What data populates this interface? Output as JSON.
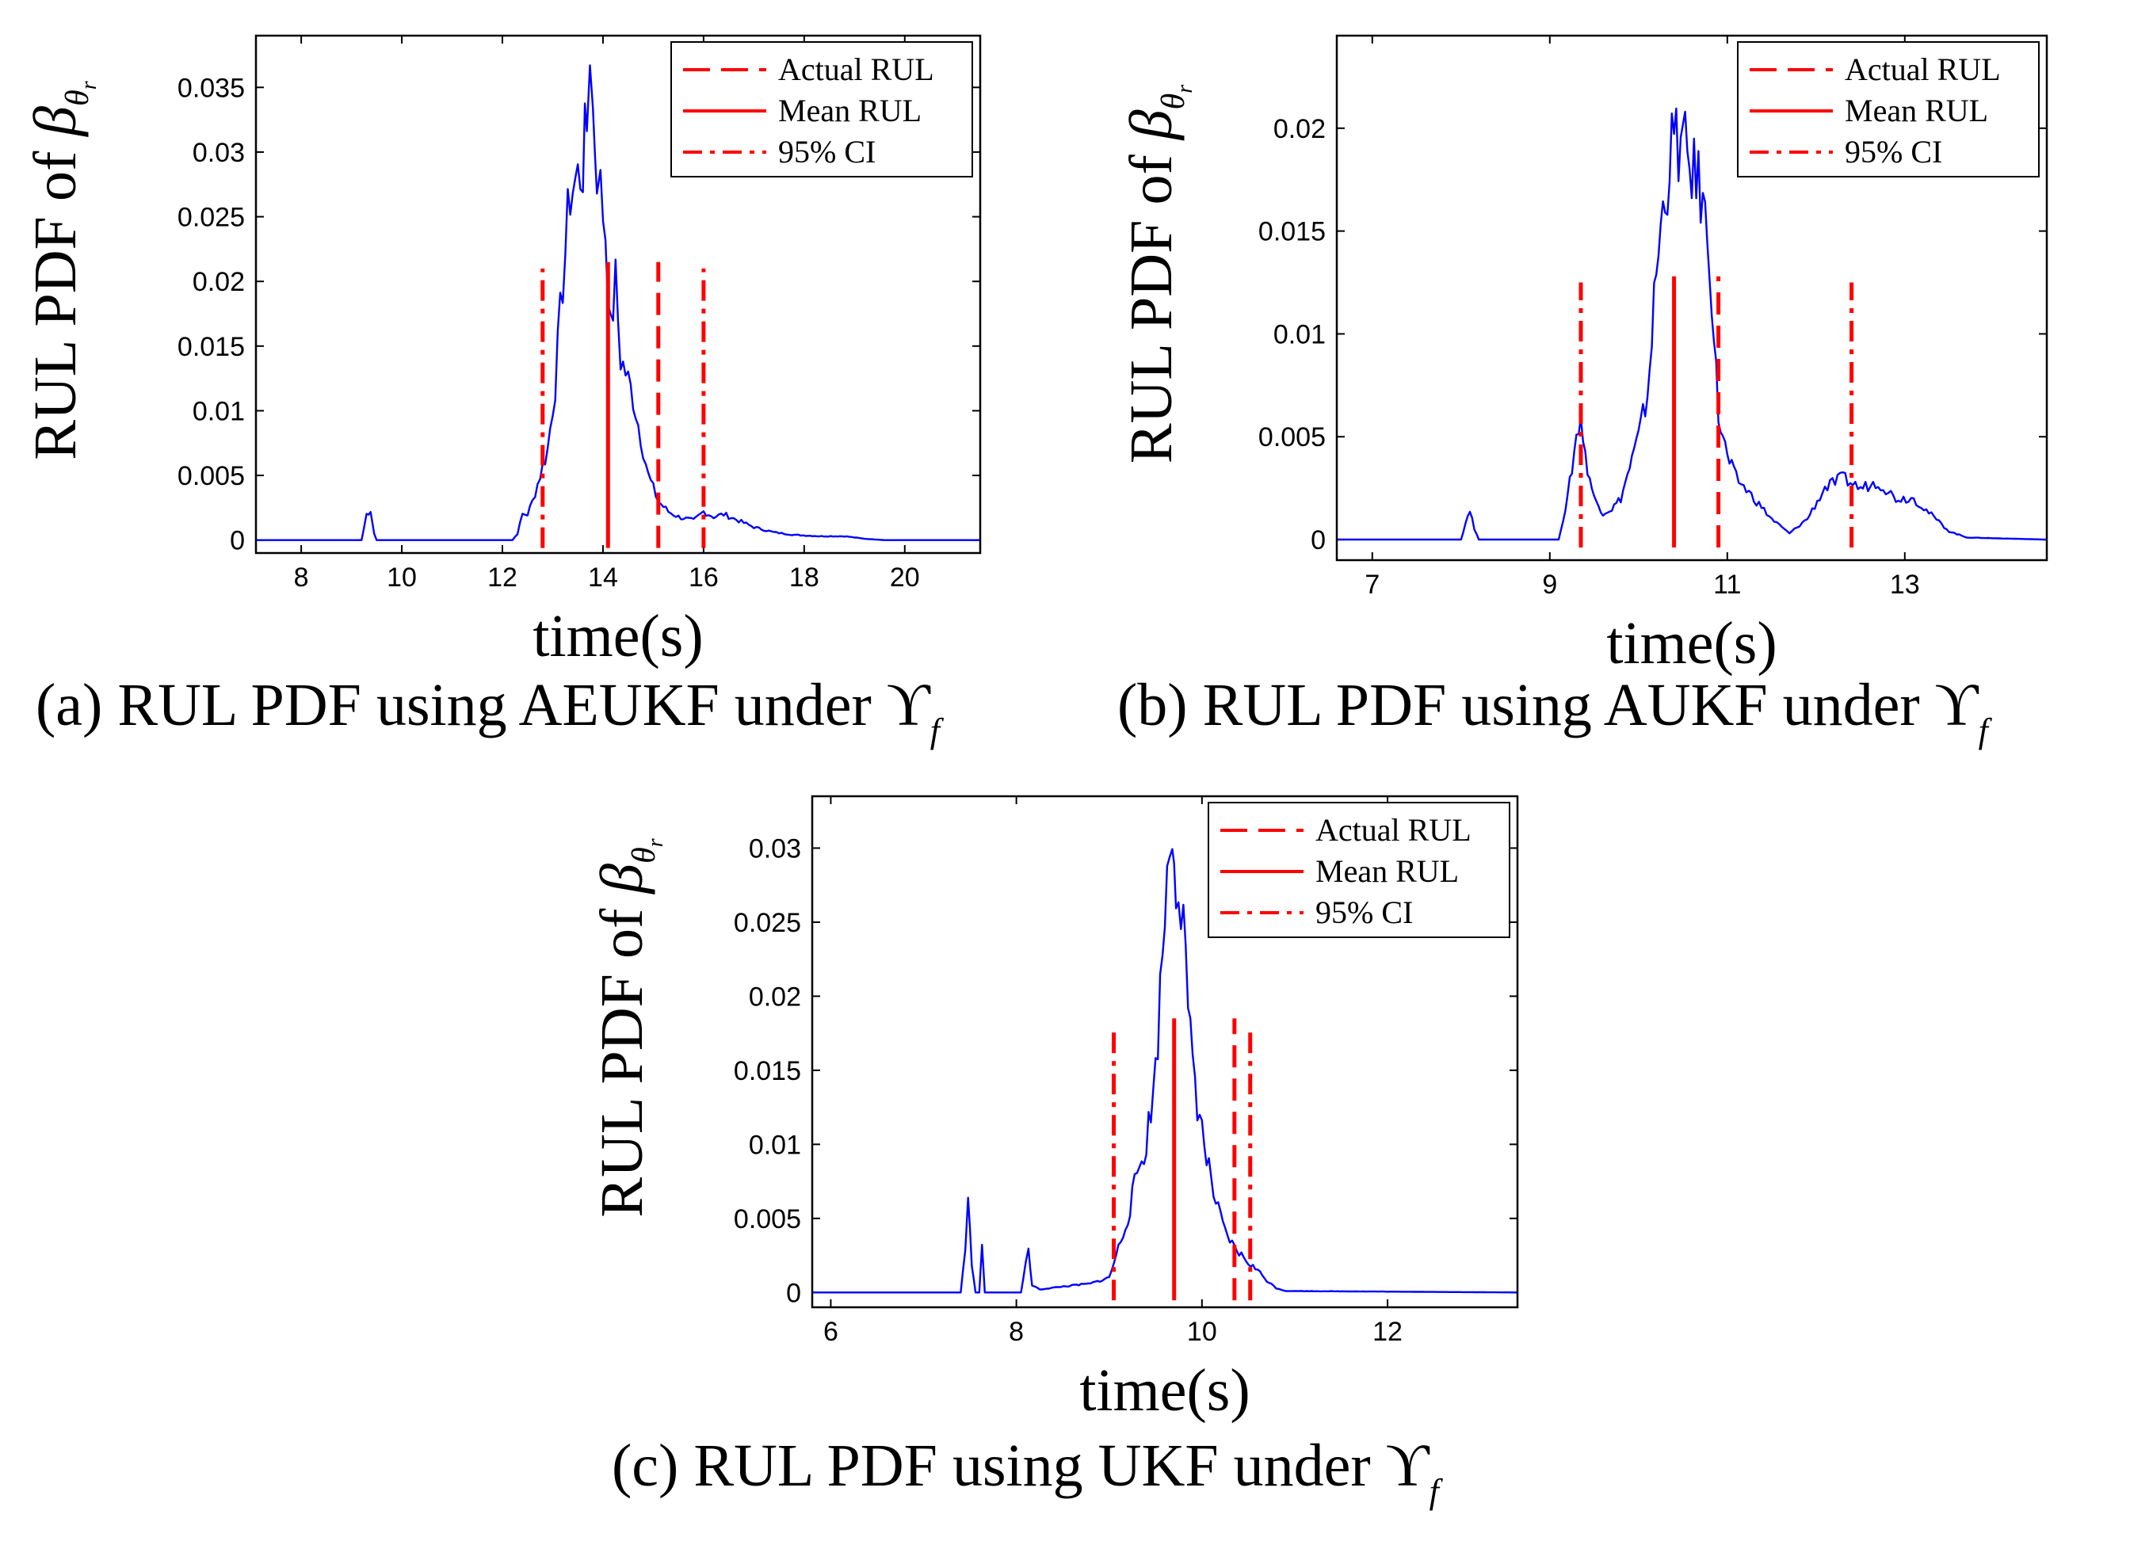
{
  "figure": {
    "legend_labels": [
      "Actual RUL",
      "Mean RUL",
      "95% CI"
    ],
    "legend_placement": "top-right",
    "colors": {
      "pdf_curve": "#0000ff",
      "rul_lines": "#ff0000",
      "axes": "#000000"
    },
    "ylabel_text": "RUL PDF of ",
    "ylabel_symbol": "β",
    "ylabel_sub": "θ",
    "ylabel_subsub": "r",
    "xlabel": "time(s)"
  },
  "chart_data": [
    {
      "type": "line",
      "caption": "(a) RUL PDF using AEUKF under ϒ",
      "caption_sub": "f",
      "xlabel": "time(s)",
      "ylabel": "RUL PDF of βθr",
      "xlim": [
        7.1,
        21.5
      ],
      "ylim": [
        -0.001,
        0.039
      ],
      "xticks": [
        8,
        10,
        12,
        14,
        16,
        18,
        20
      ],
      "yticks": [
        0,
        0.005,
        0.01,
        0.015,
        0.02,
        0.025,
        0.03,
        0.035
      ],
      "ytick_labels": [
        "0",
        "0.005",
        "0.01",
        "0.015",
        "0.02",
        "0.025",
        "0.03",
        "0.035"
      ],
      "grid": false,
      "series": [
        {
          "name": "PDF",
          "style": "solid-blue",
          "points": [
            [
              7.1,
              0
            ],
            [
              9.2,
              0
            ],
            [
              9.3,
              0.002
            ],
            [
              9.38,
              0.0023
            ],
            [
              9.45,
              0.0005
            ],
            [
              9.5,
              0
            ],
            [
              12.2,
              0
            ],
            [
              12.3,
              0.0005
            ],
            [
              12.4,
              0.002
            ],
            [
              12.5,
              0.002
            ],
            [
              12.6,
              0.003
            ],
            [
              12.75,
              0.005
            ],
            [
              12.9,
              0.007
            ],
            [
              13.05,
              0.012
            ],
            [
              13.2,
              0.02
            ],
            [
              13.35,
              0.027
            ],
            [
              13.5,
              0.028
            ],
            [
              13.6,
              0.029
            ],
            [
              13.68,
              0.032
            ],
            [
              13.74,
              0.039
            ],
            [
              13.8,
              0.033
            ],
            [
              13.88,
              0.029
            ],
            [
              13.95,
              0.027
            ],
            [
              14.05,
              0.024
            ],
            [
              14.15,
              0.016
            ],
            [
              14.25,
              0.02
            ],
            [
              14.35,
              0.014
            ],
            [
              14.45,
              0.013
            ],
            [
              14.6,
              0.011
            ],
            [
              14.75,
              0.008
            ],
            [
              14.9,
              0.005
            ],
            [
              15.1,
              0.003
            ],
            [
              15.3,
              0.0022
            ],
            [
              15.5,
              0.0018
            ],
            [
              15.8,
              0.0015
            ],
            [
              16.0,
              0.0022
            ],
            [
              16.2,
              0.0018
            ],
            [
              16.4,
              0.002
            ],
            [
              16.7,
              0.0015
            ],
            [
              17.0,
              0.001
            ],
            [
              17.4,
              0.0006
            ],
            [
              17.8,
              0.0004
            ],
            [
              18.3,
              0.0003
            ],
            [
              18.8,
              0.0003
            ],
            [
              19.2,
              0.0001
            ],
            [
              19.6,
              0
            ],
            [
              21.5,
              0
            ]
          ]
        },
        {
          "name": "Actual RUL",
          "style": "dashed",
          "x": 15.1,
          "y_top": 0.0215
        },
        {
          "name": "Mean RUL",
          "style": "solid",
          "x": 14.1,
          "y_top": 0.0215
        },
        {
          "name": "95% CI",
          "style": "dashdot",
          "x": [
            12.8,
            16.0
          ],
          "y_top": 0.021
        }
      ]
    },
    {
      "type": "line",
      "caption": "(b) RUL PDF using AUKF under ϒ",
      "caption_sub": "f",
      "xlabel": "time(s)",
      "ylabel": "RUL PDF of βθr",
      "xlim": [
        6.6,
        14.6
      ],
      "ylim": [
        -0.001,
        0.0245
      ],
      "xticks": [
        7,
        9,
        11,
        13
      ],
      "yticks": [
        0,
        0.005,
        0.01,
        0.015,
        0.02
      ],
      "ytick_labels": [
        "0",
        "0.005",
        "0.01",
        "0.015",
        "0.02"
      ],
      "grid": false,
      "series": [
        {
          "name": "PDF",
          "style": "solid-blue",
          "points": [
            [
              6.6,
              0
            ],
            [
              8.0,
              0
            ],
            [
              8.05,
              0.0008
            ],
            [
              8.1,
              0.0015
            ],
            [
              8.15,
              0.0005
            ],
            [
              8.2,
              0
            ],
            [
              9.1,
              0
            ],
            [
              9.2,
              0.002
            ],
            [
              9.3,
              0.005
            ],
            [
              9.35,
              0.006
            ],
            [
              9.4,
              0.004
            ],
            [
              9.5,
              0.002
            ],
            [
              9.6,
              0.0013
            ],
            [
              9.7,
              0.0015
            ],
            [
              9.8,
              0.002
            ],
            [
              9.9,
              0.0035
            ],
            [
              10.0,
              0.005
            ],
            [
              10.1,
              0.007
            ],
            [
              10.2,
              0.013
            ],
            [
              10.3,
              0.017
            ],
            [
              10.4,
              0.0195
            ],
            [
              10.5,
              0.019
            ],
            [
              10.6,
              0.018
            ],
            [
              10.7,
              0.017
            ],
            [
              10.8,
              0.014
            ],
            [
              10.85,
              0.01
            ],
            [
              10.9,
              0.006
            ],
            [
              11.0,
              0.004
            ],
            [
              11.1,
              0.003
            ],
            [
              11.3,
              0.002
            ],
            [
              11.5,
              0.001
            ],
            [
              11.7,
              0.0003
            ],
            [
              11.9,
              0.001
            ],
            [
              12.1,
              0.0025
            ],
            [
              12.3,
              0.003
            ],
            [
              12.5,
              0.0025
            ],
            [
              12.7,
              0.0028
            ],
            [
              12.9,
              0.002
            ],
            [
              13.1,
              0.002
            ],
            [
              13.3,
              0.0012
            ],
            [
              13.5,
              0.0004
            ],
            [
              13.7,
              0.0001
            ],
            [
              14.6,
              0
            ]
          ]
        },
        {
          "name": "Actual RUL",
          "style": "dashed",
          "x": 10.9,
          "y_top": 0.0128
        },
        {
          "name": "Mean RUL",
          "style": "solid",
          "x": 10.4,
          "y_top": 0.0128
        },
        {
          "name": "95% CI",
          "style": "dashdot",
          "x": [
            9.35,
            12.4
          ],
          "y_top": 0.0125
        }
      ]
    },
    {
      "type": "line",
      "caption": "(c) RUL PDF using UKF under ϒ",
      "caption_sub": "f",
      "xlabel": "time(s)",
      "ylabel": "RUL PDF of βθr",
      "xlim": [
        5.8,
        13.4
      ],
      "ylim": [
        -0.001,
        0.0335
      ],
      "xticks": [
        6,
        8,
        10,
        12
      ],
      "yticks": [
        0,
        0.005,
        0.01,
        0.015,
        0.02,
        0.025,
        0.03
      ],
      "ytick_labels": [
        "0",
        "0.005",
        "0.01",
        "0.015",
        "0.02",
        "0.025",
        "0.03"
      ],
      "grid": false,
      "series": [
        {
          "name": "PDF",
          "style": "solid-blue",
          "points": [
            [
              5.8,
              0
            ],
            [
              7.4,
              0
            ],
            [
              7.45,
              0.003
            ],
            [
              7.48,
              0.006
            ],
            [
              7.52,
              0.002
            ],
            [
              7.56,
              0
            ],
            [
              7.6,
              0
            ],
            [
              7.63,
              0.003
            ],
            [
              7.66,
              0
            ],
            [
              8.05,
              0
            ],
            [
              8.1,
              0.002
            ],
            [
              8.13,
              0.0027
            ],
            [
              8.17,
              0.0005
            ],
            [
              8.25,
              0.0002
            ],
            [
              8.5,
              0.0004
            ],
            [
              8.8,
              0.0006
            ],
            [
              9.0,
              0.001
            ],
            [
              9.1,
              0.003
            ],
            [
              9.2,
              0.005
            ],
            [
              9.3,
              0.008
            ],
            [
              9.4,
              0.01
            ],
            [
              9.5,
              0.015
            ],
            [
              9.55,
              0.02
            ],
            [
              9.6,
              0.026
            ],
            [
              9.65,
              0.03
            ],
            [
              9.68,
              0.032
            ],
            [
              9.72,
              0.029
            ],
            [
              9.8,
              0.025
            ],
            [
              9.85,
              0.018
            ],
            [
              9.9,
              0.016
            ],
            [
              9.95,
              0.013
            ],
            [
              10.05,
              0.009
            ],
            [
              10.15,
              0.006
            ],
            [
              10.25,
              0.004
            ],
            [
              10.35,
              0.003
            ],
            [
              10.5,
              0.002
            ],
            [
              10.6,
              0.0015
            ],
            [
              10.7,
              0.0008
            ],
            [
              10.8,
              0.0003
            ],
            [
              10.9,
              0.0001
            ],
            [
              13.4,
              0
            ]
          ]
        },
        {
          "name": "Actual RUL",
          "style": "dashed",
          "x": 10.35,
          "y_top": 0.0185
        },
        {
          "name": "Mean RUL",
          "style": "solid",
          "x": 9.7,
          "y_top": 0.0185
        },
        {
          "name": "95% CI",
          "style": "dashdot",
          "x": [
            9.05,
            10.52
          ],
          "y_top": 0.018
        }
      ]
    }
  ]
}
